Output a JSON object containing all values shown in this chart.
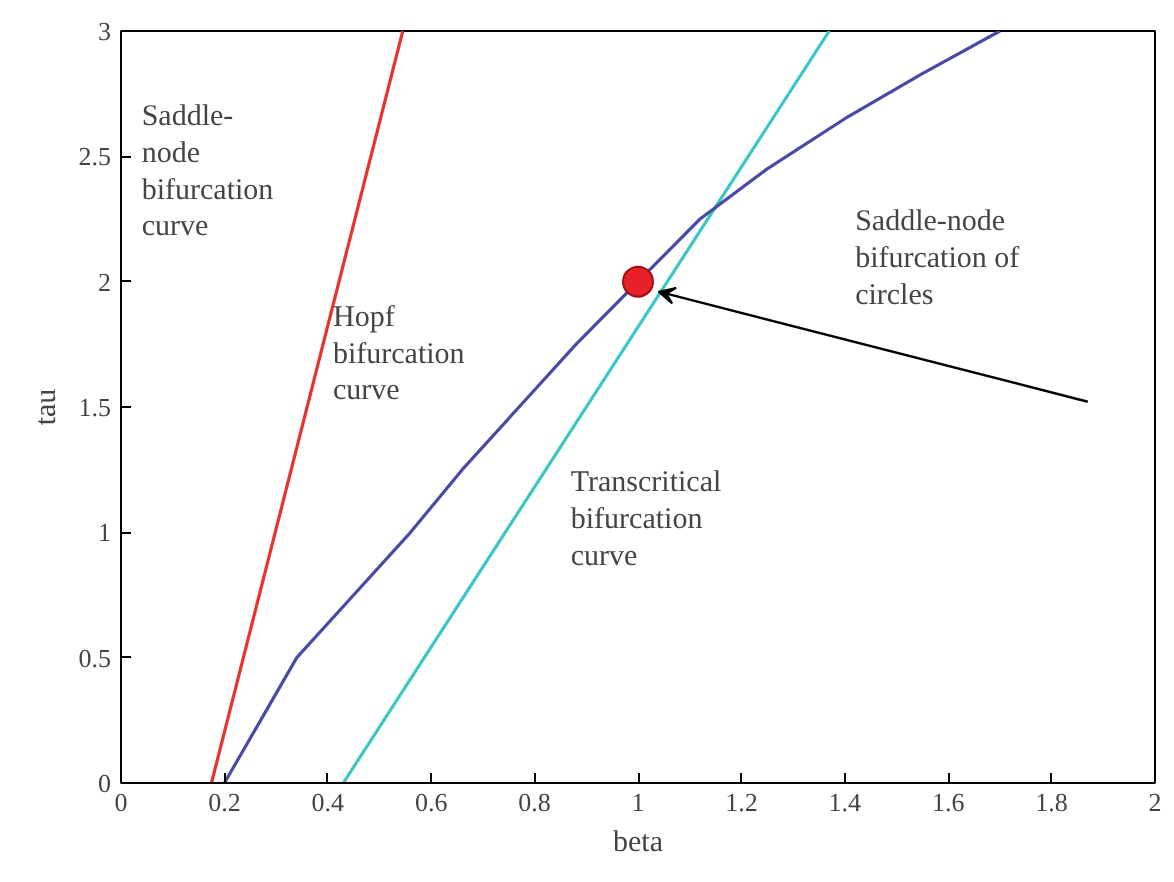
{
  "chart_data": {
    "type": "line",
    "xlabel": "beta",
    "ylabel": "tau",
    "xlim": [
      0,
      2
    ],
    "ylim": [
      0,
      3
    ],
    "xticks": [
      0,
      0.2,
      0.4,
      0.6,
      0.8,
      1,
      1.2,
      1.4,
      1.6,
      1.8,
      2
    ],
    "yticks": [
      0,
      0.5,
      1,
      1.5,
      2,
      2.5,
      3
    ],
    "grid": false,
    "marker": "none",
    "line_style": "solid",
    "series": [
      {
        "color": "#e8322e",
        "x": [
          0.175,
          0.545
        ],
        "values": [
          0,
          3
        ]
      },
      {
        "color": "#3cc6c8",
        "x": [
          0.43,
          1.37
        ],
        "values": [
          0,
          3
        ]
      },
      {
        "color": "#4a4aa6",
        "x": [
          0.2,
          0.27,
          0.34,
          0.45,
          0.56,
          0.66,
          0.77,
          0.88,
          1,
          1.12,
          1.25,
          1.4,
          1.55,
          1.7
        ],
        "values": [
          0,
          0.25,
          0.5,
          0.75,
          1,
          1.25,
          1.5,
          1.75,
          2,
          2.25,
          2.45,
          2.65,
          2.83,
          3
        ]
      },
      {
        "type": "scatter",
        "marker": "circle",
        "color": "#e8202a",
        "x": [
          1
        ],
        "values": [
          2
        ]
      }
    ],
    "annotations": [
      "Saddle-\nnode\nbifurcation\ncurve",
      "Hopf\nbifurcation\ncurve",
      "Transcritical\nbifurcation\ncurve",
      "Saddle-node\nbifurcation of\ncircles"
    ]
  }
}
